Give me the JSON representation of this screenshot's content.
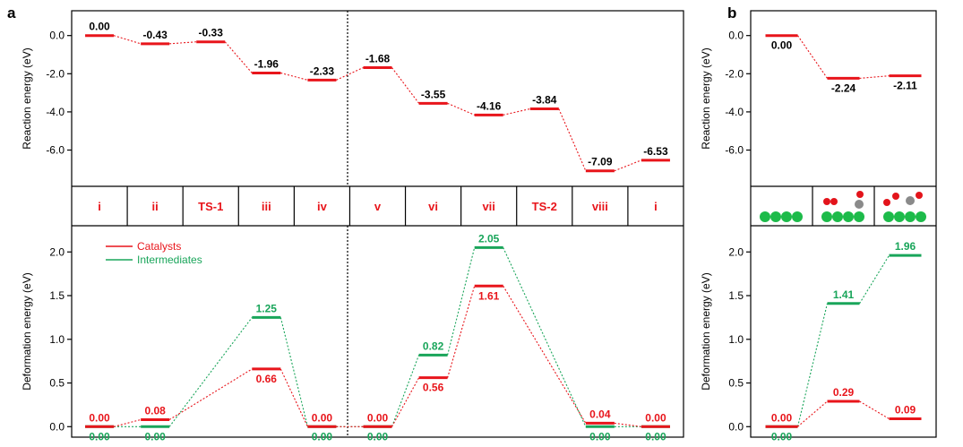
{
  "panel_labels": {
    "a": "a",
    "b": "b"
  },
  "colors": {
    "catalyst": "#e8151b",
    "intermediate": "#19a55a",
    "axis": "#000000",
    "text": "#000000"
  },
  "states_a": [
    "i",
    "ii",
    "TS-1",
    "iii",
    "iv",
    "v",
    "vi",
    "vii",
    "TS-2",
    "viii",
    "i"
  ],
  "chart_data": [
    {
      "id": "a-top",
      "type": "line",
      "title": "",
      "ylabel": "Reaction energy (eV)",
      "ylim": [
        -7.9,
        1.3
      ],
      "yticks": [
        "0.0",
        "-2.0",
        "-4.0",
        "-6.0"
      ],
      "ytick_values": [
        0,
        -2,
        -4,
        -6
      ],
      "categories": [
        "i",
        "ii",
        "TS-1",
        "iii",
        "iv",
        "v",
        "vi",
        "vii",
        "TS-2",
        "viii",
        "i"
      ],
      "series": [
        {
          "values": [
            0.0,
            -0.43,
            -0.33,
            -1.96,
            -2.33,
            -1.68,
            -3.55,
            -4.16,
            -3.84,
            -7.09,
            -6.53
          ],
          "labels": [
            "0.00",
            "-0.43",
            "-0.33",
            "-1.96",
            "-2.33",
            "-1.68",
            "-3.55",
            "-4.16",
            "-3.84",
            "-7.09",
            "-6.53"
          ]
        }
      ],
      "annotations": [
        "dotted vertical divider between iv and v"
      ]
    },
    {
      "id": "a-bottom",
      "type": "line",
      "title": "",
      "ylabel": "Deformation energy (eV)",
      "ylim": [
        -0.12,
        2.3
      ],
      "yticks": [
        "0.0",
        "0.5",
        "1.0",
        "1.5",
        "2.0"
      ],
      "ytick_values": [
        0,
        0.5,
        1.0,
        1.5,
        2.0
      ],
      "categories": [
        "i",
        "ii",
        "TS-1",
        "iii",
        "iv",
        "v",
        "vi",
        "vii",
        "TS-2",
        "viii",
        "i"
      ],
      "legend": "top-left",
      "series": [
        {
          "name": "Catalysts",
          "values": [
            0.0,
            0.08,
            null,
            0.66,
            0.0,
            0.0,
            0.56,
            1.61,
            null,
            0.04,
            0.0
          ],
          "labels": [
            "0.00",
            "0.08",
            "",
            "0.66",
            "0.00",
            "0.00",
            "0.56",
            "1.61",
            "",
            "0.04",
            "0.00"
          ]
        },
        {
          "name": "Intermediates",
          "values": [
            0.0,
            0.0,
            null,
            1.25,
            0.0,
            0.0,
            0.82,
            2.05,
            null,
            0.0,
            0.0
          ],
          "labels": [
            "0.00",
            "0.00",
            "",
            "1.25",
            "0.00",
            "0.00",
            "0.82",
            "2.05",
            "",
            "0.00",
            "0.00"
          ]
        }
      ]
    },
    {
      "id": "b-top",
      "type": "line",
      "title": "",
      "ylabel": "Reaction energy (eV)",
      "ylim": [
        -7.9,
        1.3
      ],
      "yticks": [
        "0.0",
        "-2.0",
        "-4.0",
        "-6.0"
      ],
      "ytick_values": [
        0,
        -2,
        -4,
        -6
      ],
      "series": [
        {
          "values": [
            0.0,
            -2.24,
            -2.11
          ],
          "labels": [
            "0.00",
            "-2.24",
            "-2.11"
          ]
        }
      ]
    },
    {
      "id": "b-bottom",
      "type": "line",
      "title": "",
      "ylabel": "Deformation energy (eV)",
      "ylim": [
        -0.12,
        2.3
      ],
      "yticks": [
        "0.0",
        "0.5",
        "1.0",
        "1.5",
        "2.0"
      ],
      "ytick_values": [
        0,
        0.5,
        1.0,
        1.5,
        2.0
      ],
      "series": [
        {
          "name": "Catalysts",
          "values": [
            0.0,
            0.29,
            0.09
          ],
          "labels": [
            "0.00",
            "0.29",
            "0.09"
          ]
        },
        {
          "name": "Intermediates",
          "values": [
            0.0,
            1.41,
            1.96
          ],
          "labels": [
            "0.00",
            "1.41",
            "1.96"
          ]
        }
      ]
    }
  ]
}
